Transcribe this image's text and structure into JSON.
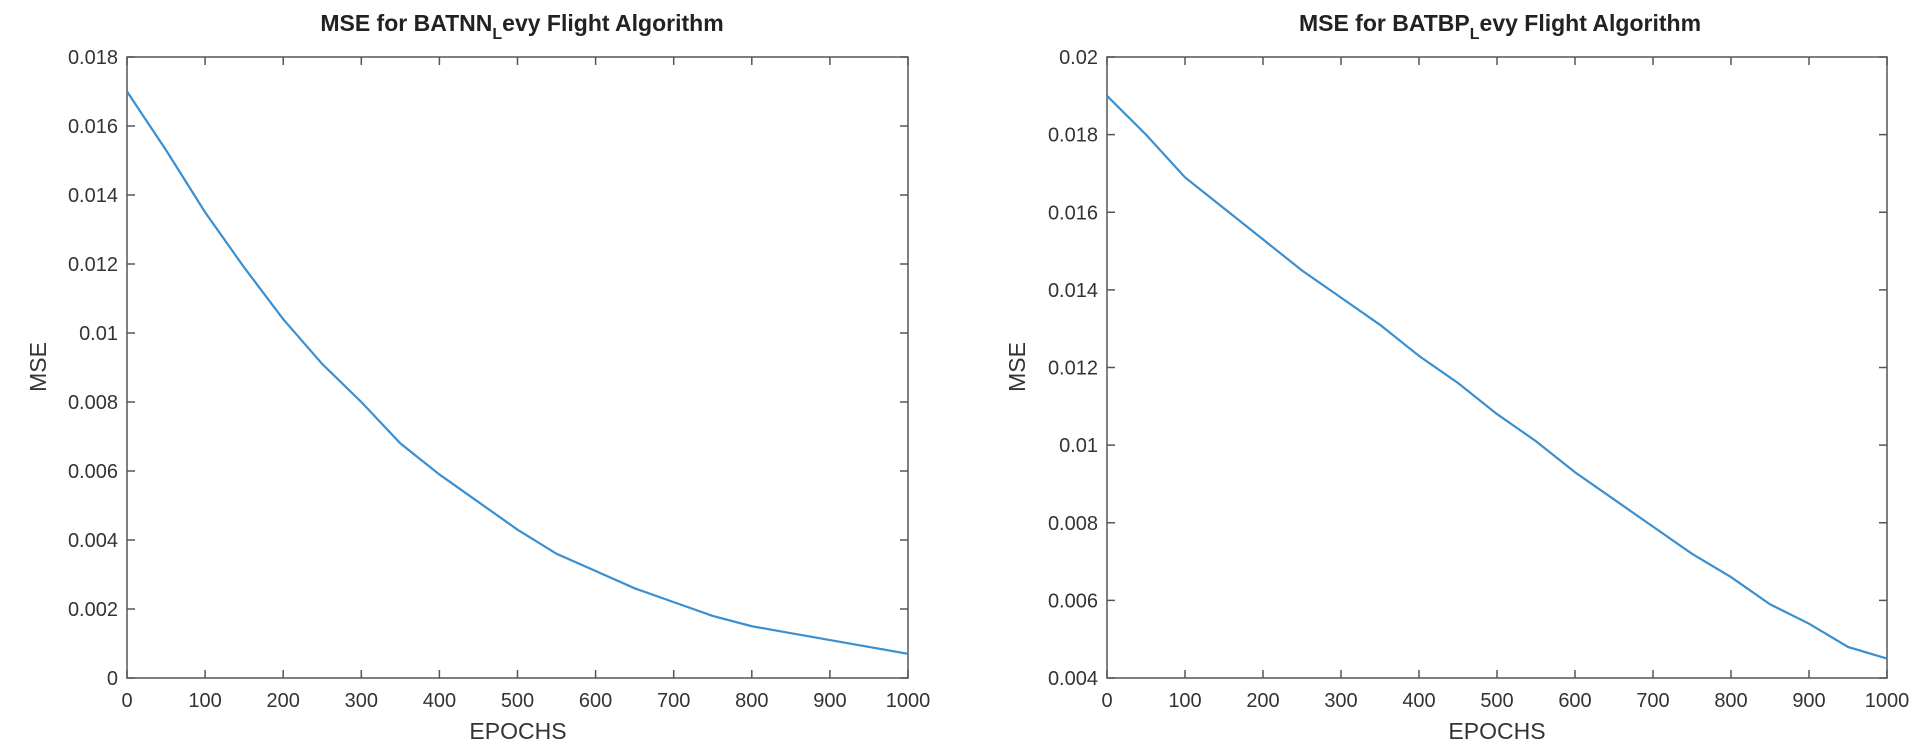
{
  "chart_data": [
    {
      "type": "line",
      "title_main": "MSE for BATNN",
      "title_sub": "L",
      "title_rest": "evy Flight Algorithm",
      "xlabel": "EPOCHS",
      "ylabel": "MSE",
      "xlim": [
        0,
        1000
      ],
      "ylim": [
        0,
        0.018
      ],
      "xticks": [
        0,
        100,
        200,
        300,
        400,
        500,
        600,
        700,
        800,
        900,
        1000
      ],
      "yticks": [
        0,
        0.002,
        0.004,
        0.006,
        0.008,
        0.01,
        0.012,
        0.014,
        0.016,
        0.018
      ],
      "grid": false,
      "color": "#3a8fd1",
      "series": [
        {
          "x": [
            0,
            50,
            100,
            150,
            200,
            250,
            300,
            350,
            400,
            450,
            500,
            550,
            600,
            650,
            700,
            750,
            800,
            850,
            900,
            950,
            1000
          ],
          "y": [
            0.017,
            0.0153,
            0.0135,
            0.0119,
            0.0104,
            0.0091,
            0.008,
            0.0068,
            0.0059,
            0.0051,
            0.0043,
            0.0036,
            0.0031,
            0.0026,
            0.0022,
            0.0018,
            0.0015,
            0.0013,
            0.0011,
            0.0009,
            0.0007
          ]
        }
      ]
    },
    {
      "type": "line",
      "title_main": "MSE for BATBP",
      "title_sub": "L",
      "title_rest": "evy Flight Algorithm",
      "xlabel": "EPOCHS",
      "ylabel": "MSE",
      "xlim": [
        0,
        1000
      ],
      "ylim": [
        0.004,
        0.02
      ],
      "xticks": [
        0,
        100,
        200,
        300,
        400,
        500,
        600,
        700,
        800,
        900,
        1000
      ],
      "yticks": [
        0.004,
        0.006,
        0.008,
        0.01,
        0.012,
        0.014,
        0.016,
        0.018,
        0.02
      ],
      "grid": false,
      "color": "#3a8fd1",
      "series": [
        {
          "x": [
            0,
            50,
            100,
            150,
            200,
            250,
            300,
            350,
            400,
            450,
            500,
            550,
            600,
            650,
            700,
            750,
            800,
            850,
            900,
            950,
            1000
          ],
          "y": [
            0.019,
            0.018,
            0.0169,
            0.0161,
            0.0153,
            0.0145,
            0.0138,
            0.0131,
            0.0123,
            0.0116,
            0.0108,
            0.0101,
            0.0093,
            0.0086,
            0.0079,
            0.0072,
            0.0066,
            0.0059,
            0.0054,
            0.0048,
            0.0045
          ]
        }
      ]
    }
  ]
}
